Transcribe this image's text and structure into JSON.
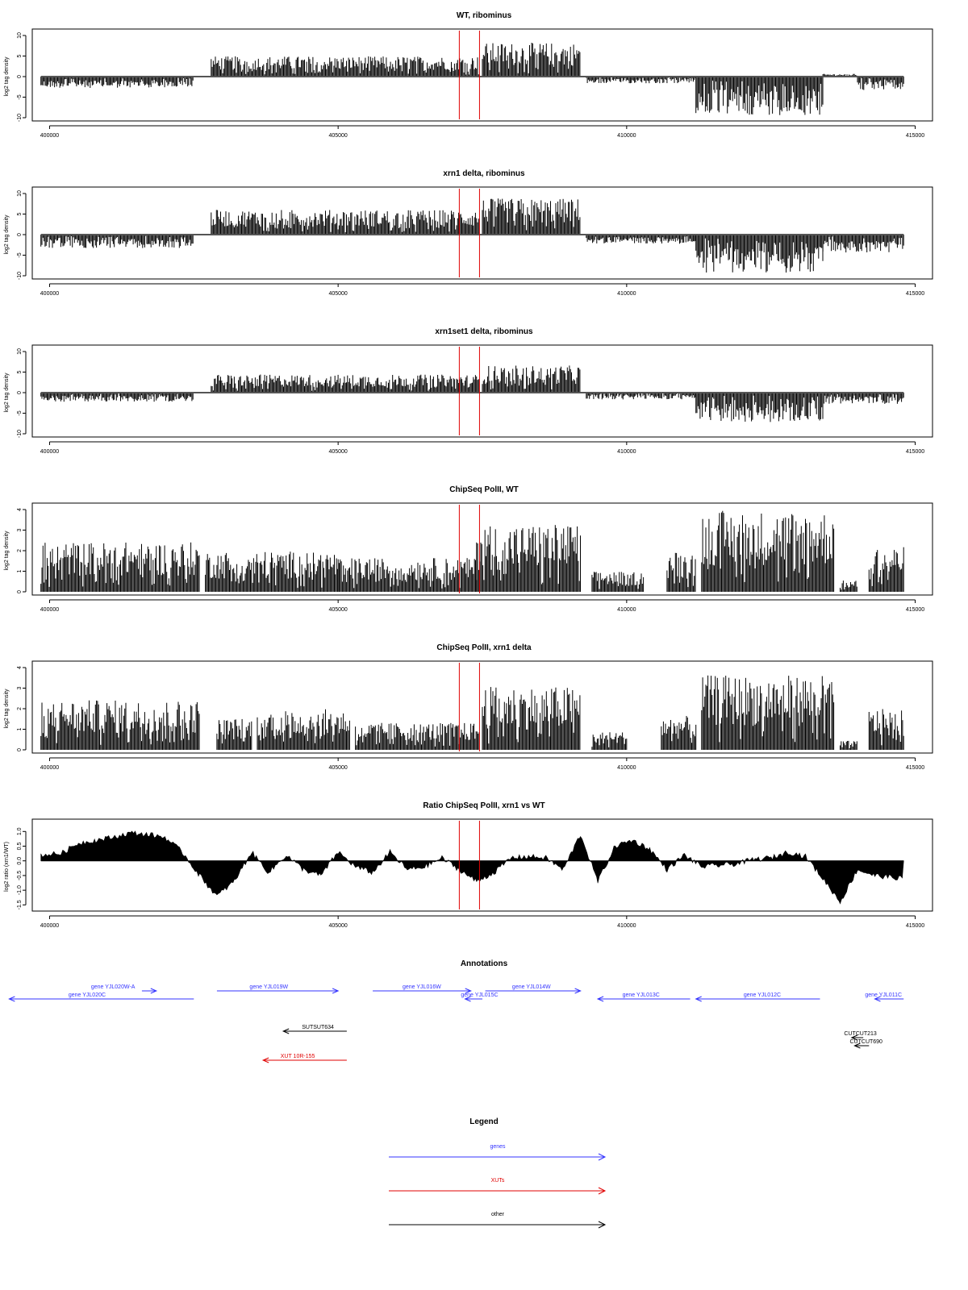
{
  "colors": {
    "gene": "#3333ff",
    "xut": "#e00000",
    "other": "#000000",
    "marker": "#e00000",
    "baseline": "#555555"
  },
  "chart_data": [
    {
      "type": "bar",
      "title": "WT, ribominus",
      "ylabel": "log2 tag density",
      "ylim": [
        -10,
        10
      ],
      "yticks": [
        -10,
        -5,
        0,
        5,
        10
      ],
      "yticklabels": [
        "-10",
        "-5",
        "0",
        "5",
        "10"
      ],
      "xlim": [
        400000,
        415000
      ],
      "xticks": [
        "400000",
        "405000",
        "410000",
        "415000"
      ],
      "markers_x": [
        407100,
        407450
      ],
      "segments": [
        {
          "x": [
            399850,
            402500
          ],
          "amp": -2.5
        },
        {
          "x": [
            402800,
            407450
          ],
          "amp": 4.5
        },
        {
          "x": [
            407500,
            409200
          ],
          "amp": 7.5
        },
        {
          "x": [
            409300,
            411200
          ],
          "amp": -1.5
        },
        {
          "x": [
            411200,
            413400
          ],
          "amp": -8.5
        },
        {
          "x": [
            413400,
            414000
          ],
          "amp": 0.6
        },
        {
          "x": [
            414000,
            414800
          ],
          "amp": -3
        }
      ]
    },
    {
      "type": "bar",
      "title": "xrn1 delta, ribominus",
      "ylabel": "log2 tag density",
      "ylim": [
        -10,
        10
      ],
      "yticks": [
        -10,
        -5,
        0,
        5,
        10
      ],
      "yticklabels": [
        "-10",
        "-5",
        "0",
        "5",
        "10"
      ],
      "xlim": [
        400000,
        415000
      ],
      "xticks": [
        "400000",
        "405000",
        "410000",
        "415000"
      ],
      "markers_x": [
        407100,
        407450
      ],
      "segments": [
        {
          "x": [
            399850,
            402500
          ],
          "amp": -3
        },
        {
          "x": [
            402800,
            407450
          ],
          "amp": 5.5
        },
        {
          "x": [
            407500,
            409200
          ],
          "amp": 8
        },
        {
          "x": [
            409300,
            411200
          ],
          "amp": -2
        },
        {
          "x": [
            411200,
            413400
          ],
          "amp": -8.5
        },
        {
          "x": [
            413400,
            414800
          ],
          "amp": -4
        }
      ]
    },
    {
      "type": "bar",
      "title": "xrn1set1 delta, ribominus",
      "ylabel": "log2 tag density",
      "ylim": [
        -10,
        10
      ],
      "yticks": [
        -10,
        -5,
        0,
        5,
        10
      ],
      "yticklabels": [
        "-10",
        "-5",
        "0",
        "5",
        "10"
      ],
      "xlim": [
        400000,
        415000
      ],
      "xticks": [
        "400000",
        "405000",
        "410000",
        "415000"
      ],
      "markers_x": [
        407100,
        407450
      ],
      "segments": [
        {
          "x": [
            399850,
            402500
          ],
          "amp": -2
        },
        {
          "x": [
            402800,
            407450
          ],
          "amp": 4
        },
        {
          "x": [
            407500,
            409200
          ],
          "amp": 6
        },
        {
          "x": [
            409300,
            411200
          ],
          "amp": -1.5
        },
        {
          "x": [
            411200,
            413400
          ],
          "amp": -6.5
        },
        {
          "x": [
            413400,
            414800
          ],
          "amp": -2.5
        }
      ]
    },
    {
      "type": "bar",
      "title": "ChipSeq PolII, WT",
      "ylabel": "log2 tag density",
      "ylim": [
        0,
        4
      ],
      "yticks": [
        0,
        1,
        2,
        3,
        4
      ],
      "yticklabels": [
        "0",
        "1",
        "2",
        "3",
        "4"
      ],
      "xlim": [
        400000,
        415000
      ],
      "xticks": [
        "400000",
        "405000",
        "410000",
        "415000"
      ],
      "markers_x": [
        407100,
        407450
      ],
      "segments": [
        {
          "x": [
            399850,
            402600
          ],
          "amp": 2.2
        },
        {
          "x": [
            402700,
            405000
          ],
          "amp": 1.8
        },
        {
          "x": [
            405000,
            407400
          ],
          "amp": 1.5
        },
        {
          "x": [
            407400,
            409200
          ],
          "amp": 3.0
        },
        {
          "x": [
            409400,
            410300
          ],
          "amp": 0.9
        },
        {
          "x": [
            410700,
            411200
          ],
          "amp": 1.8
        },
        {
          "x": [
            411300,
            413600
          ],
          "amp": 3.6
        },
        {
          "x": [
            413700,
            414000
          ],
          "amp": 0.5
        },
        {
          "x": [
            414200,
            414800
          ],
          "amp": 2.0
        }
      ]
    },
    {
      "type": "bar",
      "title": "ChipSeq PolII, xrn1 delta",
      "ylabel": "log2 tag density",
      "ylim": [
        0,
        4
      ],
      "yticks": [
        0,
        1,
        2,
        3,
        4
      ],
      "yticklabels": [
        "0",
        "1",
        "2",
        "3",
        "4"
      ],
      "xlim": [
        400000,
        415000
      ],
      "xticks": [
        "400000",
        "405000",
        "410000",
        "415000"
      ],
      "markers_x": [
        407100,
        407450
      ],
      "segments": [
        {
          "x": [
            399850,
            402600
          ],
          "amp": 2.2
        },
        {
          "x": [
            402900,
            403500
          ],
          "amp": 1.4
        },
        {
          "x": [
            403600,
            405200
          ],
          "amp": 1.8
        },
        {
          "x": [
            405300,
            407450
          ],
          "amp": 1.2
        },
        {
          "x": [
            407500,
            409200
          ],
          "amp": 2.8
        },
        {
          "x": [
            409400,
            410000
          ],
          "amp": 0.8
        },
        {
          "x": [
            410600,
            411200
          ],
          "amp": 1.5
        },
        {
          "x": [
            411300,
            413600
          ],
          "amp": 3.3
        },
        {
          "x": [
            413700,
            414000
          ],
          "amp": 0.4
        },
        {
          "x": [
            414200,
            414800
          ],
          "amp": 1.8
        }
      ]
    },
    {
      "type": "area",
      "title": "Ratio ChipSeq PolII, xrn1 vs WT",
      "ylabel": "log2 ratio (xrn1/WT)",
      "ylim": [
        -1.6,
        1.2
      ],
      "yticks": [
        -1.5,
        -1.0,
        -0.5,
        0.0,
        0.5,
        1.0
      ],
      "yticklabels": [
        "-1.5",
        "-1.0",
        "-0.5",
        "0.0",
        "0.5",
        "1.0"
      ],
      "xlim": [
        400000,
        415000
      ],
      "xticks": [
        "400000",
        "405000",
        "410000",
        "415000"
      ],
      "markers_x": [
        407100,
        407450
      ],
      "x": [
        399850,
        400200,
        400500,
        400800,
        401100,
        401400,
        401700,
        402000,
        402300,
        402600,
        402900,
        403200,
        403500,
        403800,
        404100,
        404400,
        404700,
        405000,
        405300,
        405600,
        405900,
        406200,
        406500,
        406800,
        407100,
        407400,
        407700,
        408000,
        408300,
        408600,
        408900,
        409200,
        409500,
        409800,
        410100,
        410400,
        410700,
        411000,
        411300,
        411600,
        411900,
        412200,
        412500,
        412800,
        413100,
        413400,
        413700,
        414000,
        414300,
        414800
      ],
      "y": [
        0.2,
        0.25,
        0.6,
        0.7,
        0.8,
        0.95,
        0.9,
        0.8,
        0.3,
        -0.5,
        -1.2,
        -0.7,
        0.3,
        -0.4,
        0.2,
        -0.3,
        -0.5,
        0.3,
        -0.2,
        -0.4,
        0.3,
        -0.3,
        -0.2,
        0.1,
        -0.3,
        -0.7,
        -0.4,
        0.1,
        0.15,
        0.1,
        -0.3,
        0.9,
        -0.7,
        0.5,
        0.7,
        0.4,
        -0.3,
        0.2,
        -0.2,
        -0.15,
        -0.1,
        0.05,
        0.1,
        0.3,
        0.15,
        -0.6,
        -1.4,
        -0.3,
        -0.5,
        -0.6
      ]
    }
  ],
  "annotations": {
    "title": "Annotations",
    "features": [
      {
        "label": "gene YJL020W-A",
        "type": "gene",
        "from": 401600,
        "to": 401850,
        "row": 0,
        "label_x": 401100
      },
      {
        "label": "gene YJL020C",
        "type": "gene",
        "from": 402500,
        "to": 399300,
        "row": 1,
        "label_x": 400650
      },
      {
        "label": "gene YJL019W",
        "type": "gene",
        "from": 402900,
        "to": 405000,
        "row": 0,
        "label_x": 403800
      },
      {
        "label": "gene YJL016W",
        "type": "gene",
        "from": 405600,
        "to": 407300,
        "row": 0,
        "label_x": 406450
      },
      {
        "label": "gene YJL015C",
        "type": "gene",
        "from": 407500,
        "to": 407200,
        "row": 1,
        "label_x": 407450
      },
      {
        "label": "gene YJL014W",
        "type": "gene",
        "from": 407550,
        "to": 409200,
        "row": 0,
        "label_x": 408350
      },
      {
        "label": "gene YJL013C",
        "type": "gene",
        "from": 411100,
        "to": 409500,
        "row": 1,
        "label_x": 410250
      },
      {
        "label": "gene YJL012C",
        "type": "gene",
        "from": 413350,
        "to": 411200,
        "row": 1,
        "label_x": 412350
      },
      {
        "label": "gene YJL011C",
        "type": "gene",
        "from": 414800,
        "to": 414300,
        "row": 1,
        "label_x": 414450
      },
      {
        "label": "SUTSUT634",
        "type": "other",
        "from": 405150,
        "to": 404050,
        "row": 4,
        "label_x": 404650
      },
      {
        "label": "XUT 10R-155",
        "type": "xut",
        "from": 405150,
        "to": 403700,
        "row": 8,
        "label_x": 404300
      },
      {
        "label": "CUTCUT213",
        "type": "other",
        "from": 414100,
        "to": 413900,
        "row": 5,
        "label_x": 414050
      },
      {
        "label": "CUTCUT690",
        "type": "other",
        "from": 414200,
        "to": 413950,
        "row": 6,
        "label_x": 414150
      }
    ]
  },
  "legend": {
    "title": "Legend",
    "items": [
      {
        "label": "genes",
        "type": "gene"
      },
      {
        "label": "XUTs",
        "type": "xut"
      },
      {
        "label": "other",
        "type": "other"
      }
    ]
  }
}
